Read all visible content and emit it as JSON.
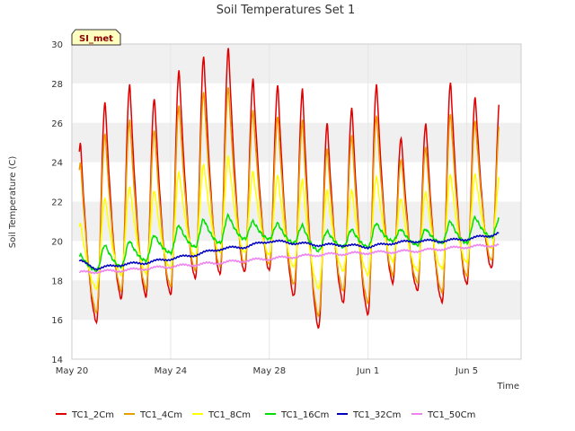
{
  "chart_data": {
    "type": "line",
    "title": "Soil Temperatures Set 1",
    "xlabel": "Time",
    "ylabel": "Soil Temperature (C)",
    "badge": "SI_met",
    "ylim": [
      14,
      30
    ],
    "yticks": [
      14,
      16,
      18,
      20,
      22,
      24,
      26,
      28,
      30
    ],
    "xlim": [
      0,
      18.2
    ],
    "xticks": [
      {
        "value": 0,
        "label": "May 20"
      },
      {
        "value": 4,
        "label": "May 24"
      },
      {
        "value": 8,
        "label": "May 28"
      },
      {
        "value": 12,
        "label": "Jun 1"
      },
      {
        "value": 16,
        "label": "Jun 5"
      }
    ],
    "grid": "horizontal bands",
    "legend_position": "bottom",
    "x_days": [
      0.3,
      17.3
    ],
    "series": [
      {
        "name": "TC1_2Cm",
        "color": "#e00000",
        "daily_min": [
          16.2,
          15.9,
          17.1,
          17.2,
          17.3,
          18.1,
          18.3,
          18.4,
          18.5,
          17.2,
          15.6,
          16.9,
          16.3,
          17.9,
          17.5,
          16.9,
          17.8,
          18.6,
          19.8
        ],
        "daily_max": [
          25.0,
          27.1,
          28.0,
          27.3,
          28.7,
          29.4,
          29.8,
          28.2,
          27.9,
          27.7,
          26.0,
          26.8,
          28.0,
          25.3,
          26.0,
          28.1,
          27.3
        ]
      },
      {
        "name": "TC1_4Cm",
        "color": "#e69f00",
        "daily_min": [
          16.6,
          16.4,
          17.5,
          17.6,
          17.7,
          18.5,
          18.7,
          18.8,
          18.8,
          17.8,
          16.2,
          17.5,
          16.9,
          18.3,
          17.9,
          17.4,
          18.2,
          19.0,
          20.0
        ],
        "daily_max": [
          24.0,
          25.5,
          26.2,
          25.7,
          26.9,
          27.6,
          27.8,
          26.6,
          26.3,
          26.1,
          24.7,
          25.4,
          26.4,
          24.2,
          24.8,
          26.5,
          26.1
        ]
      },
      {
        "name": "TC1_8Cm",
        "color": "#ffff00",
        "daily_min": [
          18.0,
          17.6,
          18.3,
          18.4,
          18.6,
          19.2,
          19.4,
          19.4,
          19.3,
          18.7,
          17.6,
          18.5,
          18.3,
          19.0,
          18.5,
          18.6,
          18.9,
          19.6,
          20.4
        ],
        "daily_max": [
          20.9,
          22.2,
          22.8,
          22.6,
          23.5,
          23.9,
          24.3,
          23.5,
          23.3,
          23.1,
          22.6,
          22.6,
          23.3,
          22.2,
          22.5,
          23.4,
          23.4
        ]
      },
      {
        "name": "TC1_16Cm",
        "color": "#00e000",
        "daily_min": [
          18.8,
          18.5,
          18.7,
          19.0,
          19.4,
          19.7,
          19.9,
          20.1,
          20.1,
          19.9,
          19.5,
          19.7,
          19.7,
          20.0,
          19.8,
          19.9,
          19.9,
          20.2,
          20.7
        ],
        "daily_max": [
          19.3,
          19.8,
          20.0,
          20.3,
          20.8,
          21.1,
          21.3,
          21.0,
          20.9,
          20.8,
          20.5,
          20.6,
          20.9,
          20.6,
          20.6,
          21.0,
          21.2
        ]
      },
      {
        "name": "TC1_32Cm",
        "color": "#0000c0",
        "trend": [
          [
            0.3,
            19.0
          ],
          [
            1.0,
            18.6
          ],
          [
            2.0,
            18.8
          ],
          [
            3.0,
            18.9
          ],
          [
            4.0,
            19.1
          ],
          [
            5.0,
            19.3
          ],
          [
            6.0,
            19.6
          ],
          [
            7.0,
            19.7
          ],
          [
            8.0,
            20.0
          ],
          [
            9.0,
            19.9
          ],
          [
            10.0,
            19.8
          ],
          [
            11.0,
            19.8
          ],
          [
            12.0,
            19.7
          ],
          [
            13.0,
            19.9
          ],
          [
            14.0,
            20.0
          ],
          [
            15.0,
            20.0
          ],
          [
            16.0,
            20.1
          ],
          [
            17.0,
            20.3
          ],
          [
            17.3,
            20.4
          ]
        ]
      },
      {
        "name": "TC1_50Cm",
        "color": "#ee82ee",
        "trend": [
          [
            0.3,
            18.4
          ],
          [
            2.0,
            18.5
          ],
          [
            4.0,
            18.7
          ],
          [
            6.0,
            18.9
          ],
          [
            8.0,
            19.1
          ],
          [
            10.0,
            19.3
          ],
          [
            12.0,
            19.4
          ],
          [
            14.0,
            19.5
          ],
          [
            16.0,
            19.7
          ],
          [
            17.3,
            19.8
          ]
        ]
      }
    ]
  }
}
